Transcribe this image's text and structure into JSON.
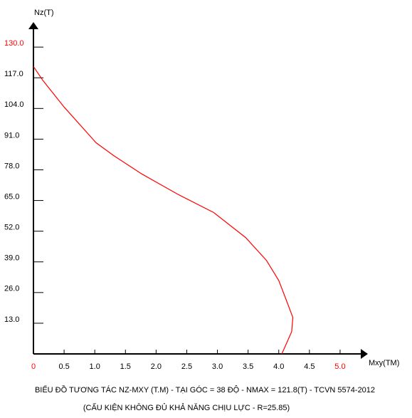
{
  "chart_data": {
    "type": "line",
    "title": "BIỂU ĐỒ TƯƠNG TÁC NZ-MXY (T.M) - TẠI GÓC = 38 ĐỘ - NMAX = 121.8(T)  - TCVN 5574-2012",
    "subtitle": "(CẤU KIỆN KHÔNG ĐỦ KHẢ NĂNG CHỊU LỰC - R=25.85)",
    "x_label": "Mxy(TM)",
    "y_label": "Nz(T)",
    "xlim": [
      0,
      5.43
    ],
    "ylim": [
      0,
      140
    ],
    "xticks": [
      {
        "value": 0,
        "label": "0",
        "color": "#ff0000"
      },
      0.5,
      {
        "value": 1,
        "label": "1.0"
      },
      1.5,
      {
        "value": 2,
        "label": "2.0"
      },
      2.5,
      {
        "value": 3,
        "label": "3.0"
      },
      3.5,
      {
        "value": 4,
        "label": "4.0"
      },
      4.5,
      {
        "value": 5,
        "label": "5.0",
        "color": "#ff0000"
      }
    ],
    "yticks": [
      {
        "value": 13,
        "label": "13.0"
      },
      {
        "value": 26,
        "label": "26.0"
      },
      {
        "value": 39,
        "label": "39.0"
      },
      {
        "value": 52,
        "label": "52.0"
      },
      {
        "value": 65,
        "label": "65.0"
      },
      {
        "value": 78,
        "label": "78.0"
      },
      {
        "value": 91,
        "label": "91.0"
      },
      {
        "value": 104,
        "label": "104.0"
      },
      {
        "value": 117,
        "label": "117.0"
      },
      {
        "value": 130,
        "label": "130.0",
        "color": "#ff0000"
      }
    ],
    "series": [
      {
        "color": "#ff0000",
        "x": [
          0,
          0.15,
          0.5,
          1.02,
          1.31,
          1.77,
          2.35,
          2.94,
          3.46,
          3.8,
          4.0,
          4.12,
          4.23,
          4.21,
          4.05
        ],
        "values": [
          121.8,
          116,
          104.6,
          89.5,
          84,
          76.2,
          67.7,
          59.9,
          49.3,
          39.6,
          31.1,
          23,
          15.4,
          9.4,
          0
        ]
      }
    ]
  }
}
